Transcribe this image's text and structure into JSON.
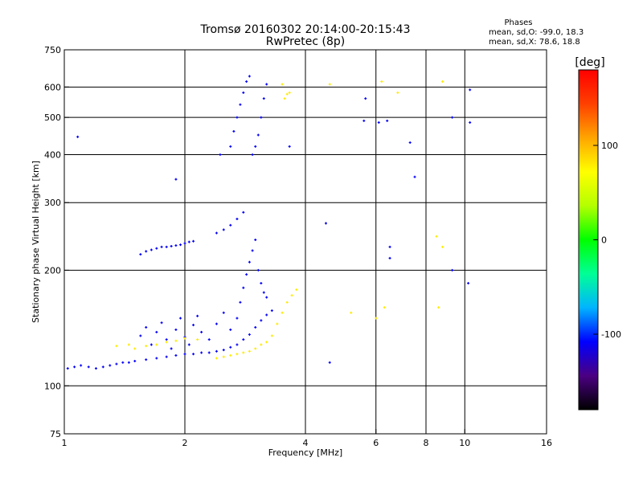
{
  "chart_data": {
    "type": "scatter",
    "title": "Tromsø 20160302 20:14:00-20:15:43",
    "subtitle": "RwPretec (8p)",
    "stats": {
      "heading": "Phases",
      "line_O": "mean, sd,O: -99.0, 18.3",
      "line_X": "mean, sd,X:  78.6, 18.8"
    },
    "xlabel": "Frequency [MHz]",
    "ylabel": "Stationary phase Virtual Height [km]",
    "x_scale": "log",
    "y_scale": "log",
    "xlim": [
      1,
      16
    ],
    "ylim": [
      75,
      750
    ],
    "x_ticks": [
      {
        "value": 1,
        "label": "1"
      },
      {
        "value": 2,
        "label": "2"
      },
      {
        "value": 4,
        "label": "4"
      },
      {
        "value": 6,
        "label": "6"
      },
      {
        "value": 8,
        "label": "8"
      },
      {
        "value": 10,
        "label": "10"
      },
      {
        "value": 16,
        "label": "16"
      }
    ],
    "y_ticks": [
      {
        "value": 75,
        "label": "75"
      },
      {
        "value": 100,
        "label": "100"
      },
      {
        "value": 200,
        "label": "200"
      },
      {
        "value": 300,
        "label": "300"
      },
      {
        "value": 400,
        "label": "400"
      },
      {
        "value": 500,
        "label": "500"
      },
      {
        "value": 600,
        "label": "600"
      },
      {
        "value": 750,
        "label": "750"
      }
    ],
    "x_gridlines": [
      2,
      4,
      6,
      8,
      10
    ],
    "y_gridlines": [
      100,
      200,
      300,
      400,
      500,
      600
    ],
    "colorbar": {
      "label": "[deg]",
      "range": [
        -180,
        180
      ],
      "ticks": [
        {
          "value": 100,
          "label": "100"
        },
        {
          "value": 0,
          "label": "0"
        },
        {
          "value": -100,
          "label": "-100"
        }
      ],
      "colors": [
        "#000000",
        "#4b0082",
        "#0000ff",
        "#00b4ff",
        "#00ff96",
        "#00ff00",
        "#b4ff00",
        "#ffff00",
        "#ffa500",
        "#ff4000",
        "#ff0000"
      ]
    },
    "traces": [
      {
        "description": "O-mode E/F1 trace",
        "phase": -110,
        "points": [
          [
            1.02,
            111
          ],
          [
            1.06,
            112
          ],
          [
            1.1,
            113
          ],
          [
            1.15,
            112
          ],
          [
            1.2,
            111
          ],
          [
            1.25,
            112
          ],
          [
            1.3,
            113
          ],
          [
            1.35,
            114
          ],
          [
            1.4,
            115
          ],
          [
            1.45,
            115
          ],
          [
            1.5,
            116
          ],
          [
            1.6,
            117
          ],
          [
            1.7,
            118
          ],
          [
            1.8,
            119
          ],
          [
            1.9,
            120
          ],
          [
            2.0,
            121
          ],
          [
            2.1,
            121
          ],
          [
            2.2,
            122
          ],
          [
            2.3,
            122
          ],
          [
            2.4,
            123
          ],
          [
            2.5,
            124
          ],
          [
            2.6,
            126
          ],
          [
            2.7,
            128
          ],
          [
            2.8,
            132
          ],
          [
            2.9,
            136
          ],
          [
            3.0,
            142
          ],
          [
            3.1,
            148
          ],
          [
            3.2,
            153
          ],
          [
            3.3,
            157
          ]
        ]
      },
      {
        "description": "O-mode scatter above E",
        "phase": -110,
        "points": [
          [
            1.55,
            135
          ],
          [
            1.6,
            142
          ],
          [
            1.65,
            128
          ],
          [
            1.7,
            138
          ],
          [
            1.75,
            146
          ],
          [
            1.8,
            132
          ],
          [
            1.85,
            125
          ],
          [
            1.9,
            140
          ],
          [
            1.95,
            150
          ],
          [
            2.0,
            134
          ],
          [
            2.05,
            128
          ],
          [
            2.1,
            144
          ],
          [
            2.15,
            152
          ],
          [
            2.2,
            138
          ],
          [
            2.3,
            132
          ],
          [
            2.4,
            145
          ],
          [
            2.5,
            155
          ],
          [
            2.6,
            140
          ]
        ]
      },
      {
        "description": "O-mode F1 layer near 220-250 km",
        "phase": -110,
        "points": [
          [
            1.55,
            220
          ],
          [
            1.6,
            224
          ],
          [
            1.65,
            226
          ],
          [
            1.7,
            228
          ],
          [
            1.75,
            230
          ],
          [
            1.8,
            230
          ],
          [
            1.85,
            231
          ],
          [
            1.9,
            232
          ],
          [
            1.95,
            233
          ],
          [
            2.0,
            235
          ],
          [
            2.05,
            237
          ],
          [
            2.1,
            238
          ],
          [
            2.4,
            250
          ],
          [
            2.5,
            255
          ],
          [
            2.6,
            262
          ],
          [
            2.7,
            272
          ],
          [
            2.8,
            283
          ]
        ]
      },
      {
        "description": "O-mode F2 lower trace",
        "phase": -110,
        "points": [
          [
            2.7,
            150
          ],
          [
            2.75,
            165
          ],
          [
            2.8,
            180
          ],
          [
            2.85,
            195
          ],
          [
            2.9,
            210
          ],
          [
            2.95,
            225
          ],
          [
            3.0,
            240
          ],
          [
            3.05,
            200
          ],
          [
            3.1,
            185
          ],
          [
            3.15,
            175
          ],
          [
            3.2,
            170
          ]
        ]
      },
      {
        "description": "O-mode F2 upper trace",
        "phase": -110,
        "points": [
          [
            2.6,
            420
          ],
          [
            2.65,
            460
          ],
          [
            2.7,
            500
          ],
          [
            2.75,
            540
          ],
          [
            2.8,
            580
          ],
          [
            2.85,
            620
          ],
          [
            2.9,
            640
          ],
          [
            2.95,
            400
          ],
          [
            3.0,
            420
          ],
          [
            3.05,
            450
          ],
          [
            3.1,
            500
          ],
          [
            3.15,
            560
          ],
          [
            3.2,
            610
          ]
        ]
      },
      {
        "description": "X-mode trace",
        "phase": 80,
        "points": [
          [
            1.5,
            125
          ],
          [
            1.6,
            127
          ],
          [
            1.7,
            128
          ],
          [
            1.8,
            130
          ],
          [
            1.9,
            131
          ],
          [
            2.0,
            133
          ],
          [
            2.4,
            118
          ],
          [
            2.5,
            119
          ],
          [
            2.6,
            120
          ],
          [
            2.7,
            121
          ],
          [
            2.8,
            122
          ],
          [
            2.9,
            123
          ],
          [
            3.0,
            125
          ],
          [
            3.1,
            128
          ],
          [
            3.2,
            130
          ],
          [
            3.3,
            135
          ],
          [
            3.4,
            145
          ],
          [
            3.5,
            155
          ],
          [
            3.6,
            165
          ],
          [
            3.7,
            172
          ],
          [
            3.8,
            178
          ]
        ]
      },
      {
        "description": "X-mode sparse points",
        "phase": 80,
        "points": [
          [
            1.35,
            127
          ],
          [
            1.45,
            128
          ],
          [
            2.15,
            132
          ],
          [
            3.55,
            560
          ],
          [
            3.6,
            575
          ],
          [
            3.65,
            580
          ],
          [
            3.5,
            610
          ],
          [
            4.6,
            610
          ],
          [
            6.2,
            620
          ],
          [
            6.8,
            580
          ],
          [
            8.8,
            620
          ],
          [
            4.5,
            265
          ],
          [
            5.2,
            155
          ],
          [
            6.0,
            150
          ],
          [
            6.3,
            160
          ],
          [
            8.5,
            245
          ],
          [
            8.8,
            230
          ],
          [
            8.6,
            160
          ]
        ]
      },
      {
        "description": "O-mode sparse points",
        "phase": -110,
        "points": [
          [
            1.08,
            445
          ],
          [
            1.9,
            345
          ],
          [
            2.45,
            400
          ],
          [
            3.65,
            420
          ],
          [
            5.6,
            490
          ],
          [
            5.65,
            560
          ],
          [
            6.1,
            485
          ],
          [
            6.4,
            490
          ],
          [
            7.5,
            350
          ],
          [
            7.3,
            430
          ],
          [
            9.3,
            500
          ],
          [
            10.3,
            485
          ],
          [
            10.3,
            590
          ],
          [
            9.3,
            200
          ],
          [
            10.2,
            185
          ],
          [
            4.6,
            115
          ],
          [
            4.5,
            265
          ],
          [
            6.5,
            230
          ],
          [
            6.5,
            215
          ]
        ]
      }
    ]
  }
}
